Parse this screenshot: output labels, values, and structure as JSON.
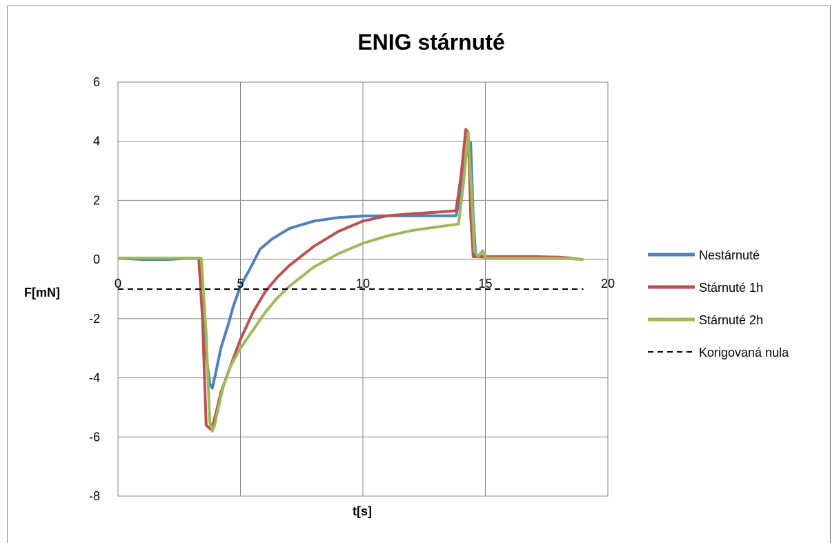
{
  "chart_data": {
    "type": "line",
    "title": "ENIG stárnuté",
    "xlabel": "t[s]",
    "ylabel": "F[mN]",
    "xlim": [
      0,
      20
    ],
    "ylim": [
      -8,
      6
    ],
    "xticks": [
      "0",
      "5",
      "10",
      "15",
      "20"
    ],
    "yticks": [
      "6",
      "4",
      "2",
      "0",
      "-2",
      "-4",
      "-6",
      "-8"
    ],
    "grid": true,
    "legend_position": "right",
    "series": [
      {
        "name": "Nestárnuté",
        "color": "#4f81bd",
        "x": [
          0,
          1,
          2,
          3,
          3.3,
          3.45,
          3.6,
          3.75,
          3.85,
          4.0,
          4.2,
          4.5,
          4.7,
          5.0,
          5.4,
          5.8,
          6.3,
          7.0,
          8.0,
          9.0,
          10.0,
          11.0,
          12.0,
          13.0,
          13.8,
          14.0,
          14.25,
          14.4,
          14.5,
          14.6,
          15.0,
          16.0,
          17.0,
          18.0,
          18.5
        ],
        "y": [
          0.05,
          0.0,
          0.0,
          0.05,
          0.05,
          -1.0,
          -3.2,
          -4.2,
          -4.35,
          -3.8,
          -3.0,
          -2.2,
          -1.6,
          -0.9,
          -0.3,
          0.35,
          0.7,
          1.05,
          1.3,
          1.42,
          1.47,
          1.48,
          1.48,
          1.48,
          1.48,
          2.2,
          3.8,
          3.95,
          1.5,
          0.15,
          0.1,
          0.1,
          0.1,
          0.08,
          0.05
        ]
      },
      {
        "name": "Stárnuté 1h",
        "color": "#c0504d",
        "x": [
          0,
          1,
          2,
          3,
          3.3,
          3.45,
          3.6,
          3.8,
          3.9,
          4.0,
          4.2,
          4.5,
          5.0,
          5.5,
          6.0,
          6.5,
          7.0,
          8.0,
          9.0,
          10.0,
          11.0,
          12.0,
          13.0,
          13.8,
          14.0,
          14.2,
          14.3,
          14.4,
          14.5,
          15.0,
          16.0,
          17.0,
          18.0,
          19.0
        ],
        "y": [
          0.05,
          0.05,
          0.05,
          0.05,
          0.05,
          -2.0,
          -5.6,
          -5.75,
          -5.5,
          -5.2,
          -4.5,
          -3.8,
          -2.7,
          -1.8,
          -1.1,
          -0.6,
          -0.2,
          0.45,
          0.95,
          1.3,
          1.48,
          1.55,
          1.6,
          1.65,
          2.8,
          4.4,
          4.3,
          1.5,
          0.1,
          0.08,
          0.08,
          0.08,
          0.08,
          0.0
        ]
      },
      {
        "name": "Stárnuté 2h",
        "color": "#9bbb59",
        "x": [
          0,
          1,
          2,
          3,
          3.4,
          3.6,
          3.75,
          3.85,
          3.95,
          4.1,
          4.3,
          4.6,
          5.0,
          5.5,
          6.0,
          6.5,
          7.0,
          8.0,
          9.0,
          10.0,
          11.0,
          12.0,
          13.0,
          13.9,
          14.1,
          14.3,
          14.45,
          14.55,
          14.7,
          14.9,
          15.0,
          16.0,
          17.0,
          18.0,
          19.0
        ],
        "y": [
          0.05,
          0.05,
          0.05,
          0.05,
          0.05,
          -2.5,
          -5.5,
          -5.8,
          -5.6,
          -5.0,
          -4.3,
          -3.6,
          -3.0,
          -2.4,
          -1.8,
          -1.3,
          -0.9,
          -0.25,
          0.2,
          0.55,
          0.8,
          0.98,
          1.1,
          1.2,
          2.5,
          4.3,
          2.0,
          0.3,
          0.1,
          0.3,
          0.05,
          0.05,
          0.05,
          0.05,
          0.0
        ]
      },
      {
        "name": "Korigovaná nula",
        "color": "#000000",
        "dashed": true,
        "x": [
          0,
          19
        ],
        "y": [
          -1,
          -1
        ]
      }
    ]
  }
}
